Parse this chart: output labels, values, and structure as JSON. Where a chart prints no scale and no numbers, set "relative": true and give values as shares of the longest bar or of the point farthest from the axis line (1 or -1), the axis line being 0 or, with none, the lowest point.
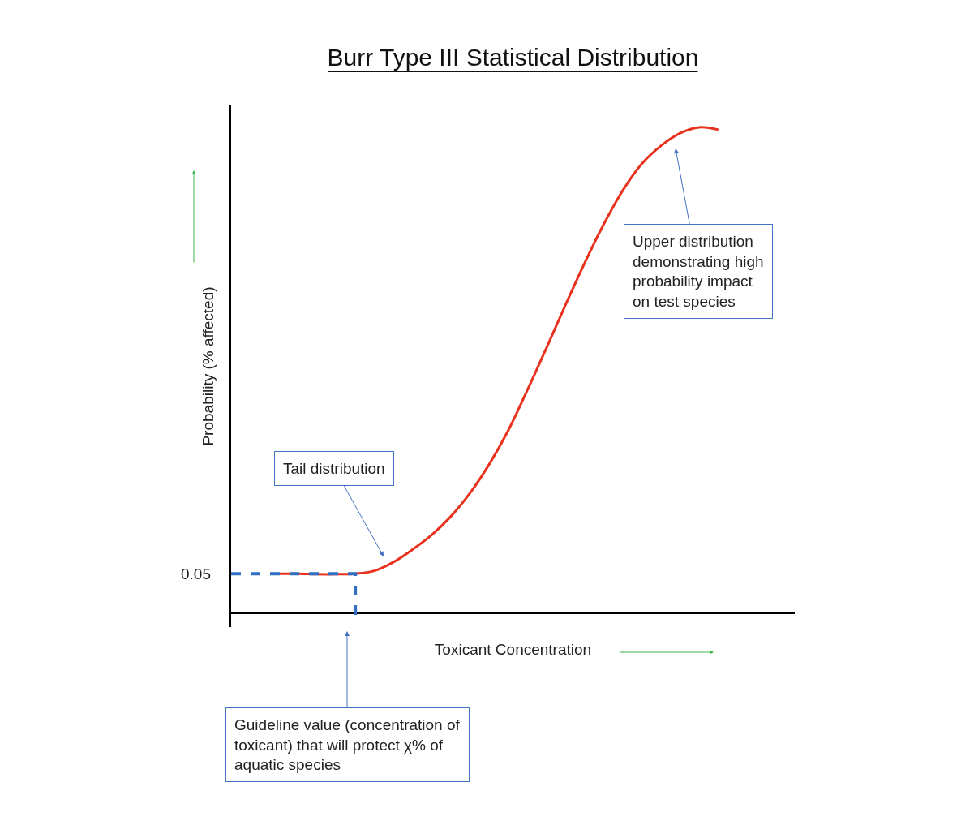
{
  "chart_data": {
    "type": "line",
    "relative": true,
    "title": "Burr Type III Statistical Distribution",
    "xlabel": "Toxicant Concentration",
    "ylabel": "Probability (% affected)",
    "categories": [
      null,
      null,
      null,
      null,
      null,
      null,
      null,
      null,
      null,
      null,
      null,
      null,
      null,
      null,
      null,
      null,
      null,
      null,
      null,
      null,
      null,
      null,
      null,
      null,
      null,
      null,
      null,
      null,
      null,
      null
    ],
    "series": [
      {
        "color": "#e8321e",
        "values": [
          null,
          null,
          0.08,
          0.08,
          0.079,
          0.079,
          0.08,
          0.086,
          0.104,
          0.13,
          0.16,
          0.198,
          0.246,
          0.305,
          0.375,
          0.458,
          0.545,
          0.634,
          0.72,
          0.8,
          0.87,
          0.925,
          0.962,
          0.988,
          1.0,
          0.995,
          null,
          null,
          null,
          null
        ]
      }
    ],
    "ref_lines": [
      {
        "axis": "y",
        "value": 0.08,
        "color": "#2e6fc4",
        "line_style": "dashed"
      }
    ],
    "annotations": [
      "0.05",
      "Upper distribution\ndemonstrating high\nprobability impact\non test species",
      "Tail distribution",
      "Guideline value (concentration of\ntoxicant) that will protect χ% of\naquatic species"
    ],
    "marker": "none",
    "line_style": "solid"
  }
}
